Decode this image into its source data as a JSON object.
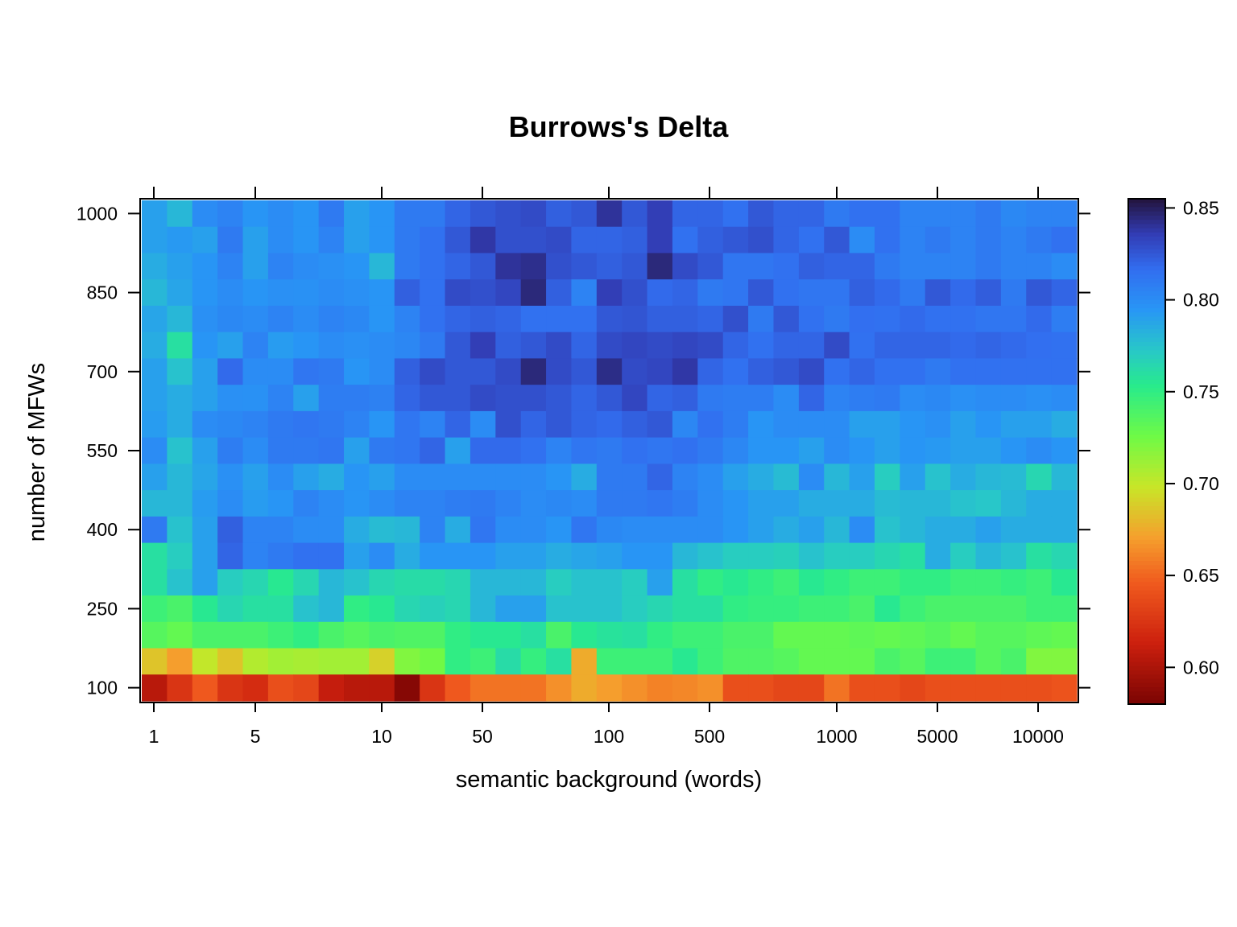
{
  "chart_data": {
    "type": "heatmap",
    "title": "Burrows's Delta",
    "xlabel": "semantic background (words)",
    "ylabel": "number of MFWs",
    "x_tick_labels": [
      "1",
      "5",
      "10",
      "50",
      "100",
      "500",
      "1000",
      "5000",
      "10000"
    ],
    "y_tick_labels": [
      "100",
      "250",
      "400",
      "550",
      "700",
      "850",
      "1000"
    ],
    "x_scale": "ordinal (log-spaced background sizes)",
    "y_range": [
      100,
      1000
    ],
    "y_step": 50,
    "colorbar": {
      "range": [
        0.58,
        0.855
      ],
      "tick_labels": [
        "0.60",
        "0.65",
        "0.70",
        "0.75",
        "0.80",
        "0.85"
      ],
      "tick_values": [
        0.6,
        0.65,
        0.7,
        0.75,
        0.8,
        0.85
      ]
    },
    "grid": false,
    "rows_top_to_bottom_note": "values[0] is MFW=1000, values[18] is MFW=100",
    "values": [
      [
        0.79,
        0.78,
        0.8,
        0.805,
        0.795,
        0.8,
        0.795,
        0.81,
        0.79,
        0.795,
        0.81,
        0.81,
        0.82,
        0.825,
        0.828,
        0.83,
        0.822,
        0.825,
        0.84,
        0.825,
        0.835,
        0.82,
        0.82,
        0.815,
        0.825,
        0.82,
        0.82,
        0.81,
        0.815,
        0.815,
        0.805,
        0.805,
        0.805,
        0.81,
        0.802,
        0.805,
        0.805
      ],
      [
        0.79,
        0.793,
        0.79,
        0.81,
        0.79,
        0.8,
        0.795,
        0.805,
        0.79,
        0.795,
        0.81,
        0.815,
        0.825,
        0.838,
        0.828,
        0.828,
        0.83,
        0.82,
        0.82,
        0.822,
        0.835,
        0.815,
        0.822,
        0.825,
        0.828,
        0.82,
        0.815,
        0.825,
        0.8,
        0.815,
        0.805,
        0.81,
        0.805,
        0.81,
        0.805,
        0.81,
        0.815
      ],
      [
        0.785,
        0.79,
        0.795,
        0.805,
        0.79,
        0.805,
        0.8,
        0.798,
        0.795,
        0.78,
        0.81,
        0.815,
        0.82,
        0.825,
        0.84,
        0.842,
        0.828,
        0.825,
        0.822,
        0.825,
        0.845,
        0.83,
        0.825,
        0.812,
        0.812,
        0.815,
        0.822,
        0.82,
        0.82,
        0.81,
        0.805,
        0.805,
        0.805,
        0.81,
        0.805,
        0.805,
        0.8
      ],
      [
        0.78,
        0.788,
        0.795,
        0.8,
        0.795,
        0.798,
        0.797,
        0.8,
        0.798,
        0.795,
        0.822,
        0.815,
        0.83,
        0.828,
        0.832,
        0.845,
        0.822,
        0.805,
        0.835,
        0.828,
        0.818,
        0.82,
        0.81,
        0.812,
        0.825,
        0.815,
        0.812,
        0.812,
        0.822,
        0.818,
        0.81,
        0.825,
        0.818,
        0.823,
        0.81,
        0.825,
        0.82
      ],
      [
        0.788,
        0.78,
        0.798,
        0.802,
        0.8,
        0.805,
        0.8,
        0.805,
        0.802,
        0.795,
        0.805,
        0.815,
        0.82,
        0.822,
        0.82,
        0.815,
        0.815,
        0.815,
        0.825,
        0.826,
        0.822,
        0.822,
        0.82,
        0.828,
        0.81,
        0.825,
        0.815,
        0.81,
        0.816,
        0.815,
        0.818,
        0.815,
        0.815,
        0.812,
        0.812,
        0.818,
        0.808
      ],
      [
        0.785,
        0.76,
        0.795,
        0.79,
        0.805,
        0.792,
        0.795,
        0.8,
        0.798,
        0.8,
        0.803,
        0.81,
        0.825,
        0.835,
        0.822,
        0.825,
        0.83,
        0.82,
        0.83,
        0.832,
        0.83,
        0.832,
        0.83,
        0.82,
        0.815,
        0.82,
        0.82,
        0.83,
        0.815,
        0.82,
        0.82,
        0.82,
        0.818,
        0.82,
        0.818,
        0.816,
        0.815
      ],
      [
        0.79,
        0.775,
        0.79,
        0.818,
        0.8,
        0.8,
        0.812,
        0.81,
        0.795,
        0.8,
        0.822,
        0.83,
        0.825,
        0.825,
        0.83,
        0.845,
        0.83,
        0.825,
        0.843,
        0.83,
        0.832,
        0.838,
        0.82,
        0.815,
        0.822,
        0.825,
        0.83,
        0.815,
        0.82,
        0.815,
        0.815,
        0.81,
        0.815,
        0.815,
        0.815,
        0.815,
        0.815
      ],
      [
        0.79,
        0.785,
        0.79,
        0.798,
        0.797,
        0.805,
        0.79,
        0.808,
        0.808,
        0.806,
        0.82,
        0.825,
        0.825,
        0.83,
        0.828,
        0.828,
        0.825,
        0.82,
        0.825,
        0.832,
        0.82,
        0.822,
        0.81,
        0.808,
        0.808,
        0.8,
        0.82,
        0.805,
        0.808,
        0.81,
        0.8,
        0.802,
        0.798,
        0.8,
        0.8,
        0.798,
        0.8
      ],
      [
        0.792,
        0.785,
        0.8,
        0.802,
        0.805,
        0.81,
        0.812,
        0.81,
        0.805,
        0.795,
        0.812,
        0.805,
        0.82,
        0.8,
        0.828,
        0.82,
        0.825,
        0.82,
        0.818,
        0.822,
        0.825,
        0.803,
        0.815,
        0.808,
        0.795,
        0.8,
        0.8,
        0.8,
        0.79,
        0.79,
        0.795,
        0.798,
        0.79,
        0.795,
        0.79,
        0.79,
        0.785
      ],
      [
        0.8,
        0.775,
        0.79,
        0.808,
        0.8,
        0.81,
        0.81,
        0.812,
        0.79,
        0.81,
        0.812,
        0.82,
        0.79,
        0.818,
        0.818,
        0.815,
        0.805,
        0.812,
        0.81,
        0.815,
        0.812,
        0.815,
        0.81,
        0.803,
        0.795,
        0.795,
        0.79,
        0.8,
        0.795,
        0.79,
        0.795,
        0.793,
        0.79,
        0.79,
        0.795,
        0.8,
        0.795
      ],
      [
        0.79,
        0.78,
        0.788,
        0.798,
        0.79,
        0.8,
        0.79,
        0.785,
        0.795,
        0.79,
        0.8,
        0.8,
        0.8,
        0.8,
        0.8,
        0.8,
        0.795,
        0.785,
        0.81,
        0.81,
        0.82,
        0.805,
        0.8,
        0.79,
        0.785,
        0.778,
        0.8,
        0.78,
        0.79,
        0.77,
        0.79,
        0.775,
        0.785,
        0.78,
        0.778,
        0.765,
        0.78
      ],
      [
        0.78,
        0.78,
        0.792,
        0.8,
        0.792,
        0.795,
        0.805,
        0.8,
        0.795,
        0.8,
        0.805,
        0.805,
        0.808,
        0.81,
        0.805,
        0.8,
        0.802,
        0.8,
        0.81,
        0.81,
        0.812,
        0.808,
        0.8,
        0.795,
        0.79,
        0.79,
        0.785,
        0.785,
        0.785,
        0.778,
        0.78,
        0.78,
        0.775,
        0.773,
        0.78,
        0.785,
        0.785
      ],
      [
        0.81,
        0.775,
        0.79,
        0.822,
        0.805,
        0.805,
        0.8,
        0.8,
        0.785,
        0.778,
        0.78,
        0.805,
        0.785,
        0.812,
        0.8,
        0.8,
        0.795,
        0.812,
        0.802,
        0.8,
        0.8,
        0.8,
        0.8,
        0.795,
        0.79,
        0.785,
        0.79,
        0.78,
        0.8,
        0.775,
        0.78,
        0.785,
        0.785,
        0.79,
        0.785,
        0.785,
        0.785
      ],
      [
        0.76,
        0.77,
        0.79,
        0.82,
        0.805,
        0.81,
        0.815,
        0.815,
        0.79,
        0.8,
        0.785,
        0.795,
        0.795,
        0.795,
        0.79,
        0.79,
        0.785,
        0.788,
        0.79,
        0.795,
        0.795,
        0.78,
        0.775,
        0.77,
        0.77,
        0.768,
        0.775,
        0.77,
        0.77,
        0.765,
        0.76,
        0.785,
        0.77,
        0.78,
        0.775,
        0.76,
        0.765
      ],
      [
        0.76,
        0.775,
        0.79,
        0.77,
        0.765,
        0.755,
        0.765,
        0.78,
        0.775,
        0.765,
        0.762,
        0.762,
        0.765,
        0.78,
        0.78,
        0.78,
        0.77,
        0.775,
        0.775,
        0.77,
        0.79,
        0.76,
        0.75,
        0.755,
        0.75,
        0.745,
        0.755,
        0.75,
        0.745,
        0.745,
        0.75,
        0.75,
        0.745,
        0.745,
        0.748,
        0.745,
        0.755
      ],
      [
        0.745,
        0.74,
        0.755,
        0.765,
        0.76,
        0.76,
        0.775,
        0.78,
        0.75,
        0.755,
        0.765,
        0.768,
        0.765,
        0.78,
        0.79,
        0.79,
        0.775,
        0.775,
        0.775,
        0.77,
        0.765,
        0.76,
        0.76,
        0.75,
        0.748,
        0.748,
        0.745,
        0.745,
        0.74,
        0.755,
        0.745,
        0.74,
        0.74,
        0.74,
        0.74,
        0.745,
        0.745
      ],
      [
        0.735,
        0.73,
        0.74,
        0.74,
        0.74,
        0.745,
        0.75,
        0.74,
        0.735,
        0.74,
        0.738,
        0.738,
        0.75,
        0.755,
        0.755,
        0.76,
        0.74,
        0.755,
        0.758,
        0.76,
        0.75,
        0.745,
        0.745,
        0.74,
        0.74,
        0.73,
        0.73,
        0.73,
        0.732,
        0.73,
        0.732,
        0.735,
        0.73,
        0.735,
        0.735,
        0.732,
        0.73
      ],
      [
        0.685,
        0.67,
        0.7,
        0.685,
        0.705,
        0.71,
        0.708,
        0.71,
        0.71,
        0.69,
        0.72,
        0.725,
        0.75,
        0.745,
        0.762,
        0.748,
        0.76,
        0.675,
        0.745,
        0.745,
        0.745,
        0.755,
        0.745,
        0.738,
        0.738,
        0.735,
        0.73,
        0.73,
        0.73,
        0.74,
        0.735,
        0.745,
        0.745,
        0.735,
        0.74,
        0.72,
        0.72
      ],
      [
        0.605,
        0.625,
        0.645,
        0.625,
        0.62,
        0.64,
        0.635,
        0.61,
        0.605,
        0.605,
        0.585,
        0.625,
        0.645,
        0.655,
        0.655,
        0.655,
        0.665,
        0.675,
        0.67,
        0.665,
        0.66,
        0.662,
        0.665,
        0.64,
        0.64,
        0.635,
        0.635,
        0.655,
        0.64,
        0.64,
        0.635,
        0.64,
        0.64,
        0.64,
        0.64,
        0.64,
        0.642
      ]
    ]
  }
}
